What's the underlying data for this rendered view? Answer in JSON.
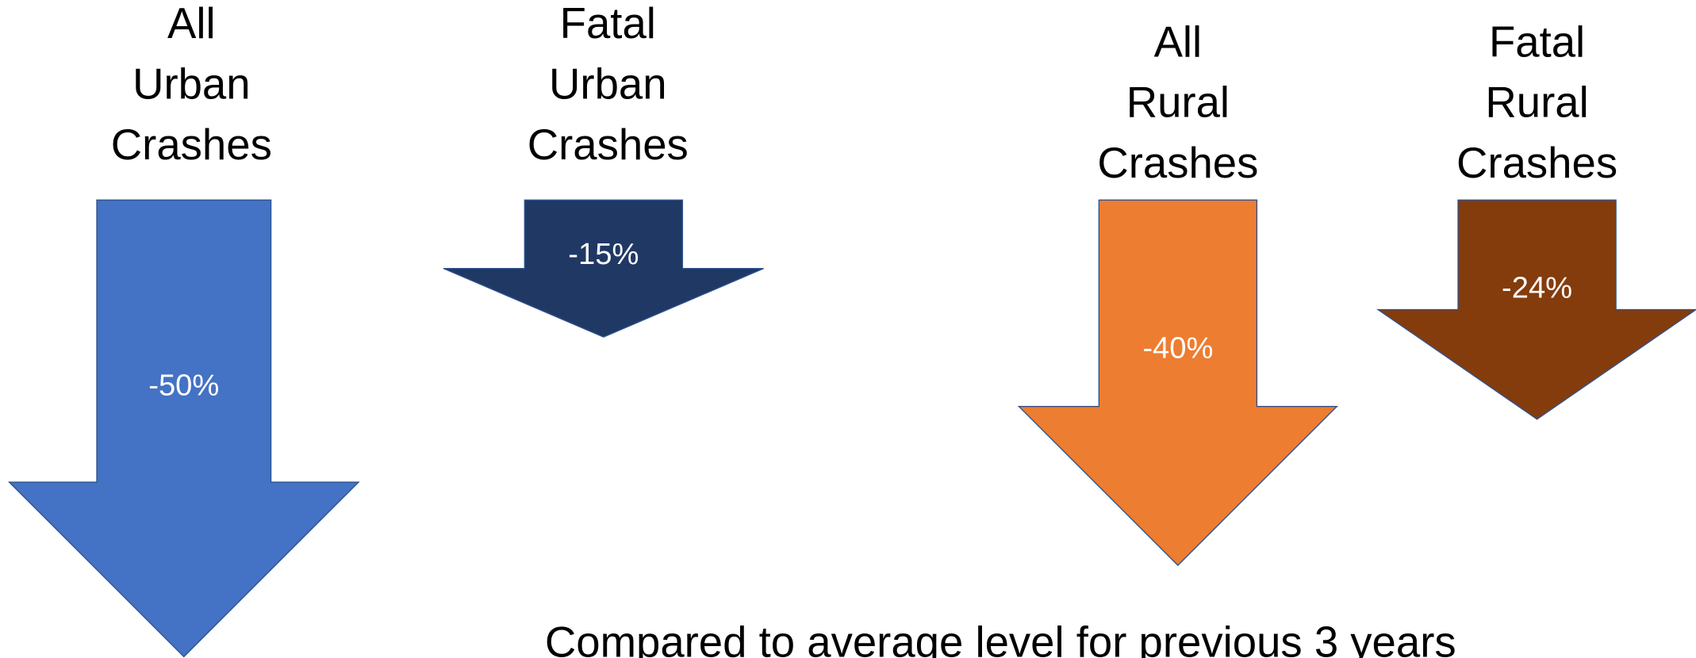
{
  "chart_data": {
    "type": "arrow",
    "categories": [
      "All Urban Crashes",
      "Fatal Urban Crashes",
      "All Rural Crashes",
      "Fatal Rural Crashes"
    ],
    "values": [
      -50,
      -15,
      -40,
      -24
    ],
    "value_labels": [
      "-50%",
      "-15%",
      "-40%",
      "-24%"
    ],
    "colors": [
      "#4472c4",
      "#203864",
      "#ed7d31",
      "#843c0c"
    ],
    "note": "Compared to average level for previous 3 years"
  }
}
